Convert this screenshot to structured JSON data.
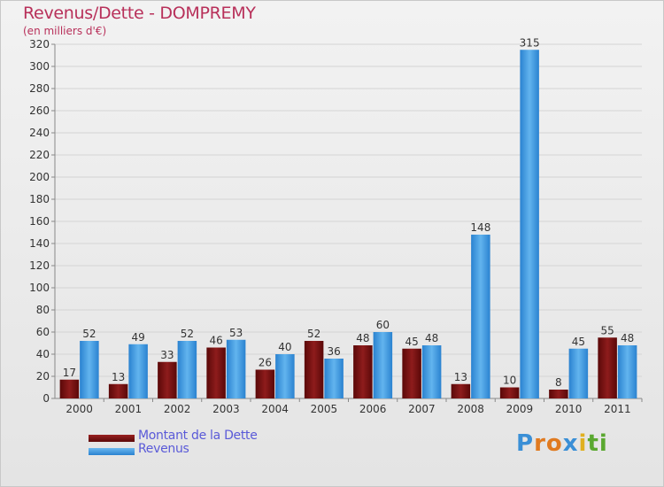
{
  "chart_data": {
    "type": "bar",
    "title": "Revenus/Dette - DOMPREMY",
    "subtitle": "(en milliers d'€)",
    "categories": [
      "2000",
      "2001",
      "2002",
      "2003",
      "2004",
      "2005",
      "2006",
      "2007",
      "2008",
      "2009",
      "2010",
      "2011"
    ],
    "series": [
      {
        "name": "Montant de la Dette",
        "color": "#7a1010",
        "values": [
          17,
          13,
          33,
          46,
          26,
          52,
          48,
          45,
          13,
          10,
          8,
          55
        ]
      },
      {
        "name": "Revenus",
        "color": "#3a9ae6",
        "values": [
          52,
          49,
          52,
          53,
          40,
          36,
          60,
          48,
          148,
          315,
          45,
          48
        ]
      }
    ],
    "ylim": [
      0,
      320
    ],
    "yticks": [
      0,
      20,
      40,
      60,
      80,
      100,
      120,
      140,
      160,
      180,
      200,
      220,
      240,
      260,
      280,
      300,
      320
    ],
    "grid": true,
    "legend": "bottom-left"
  },
  "brand": {
    "letters": [
      "P",
      "r",
      "o",
      "x",
      "i",
      "t",
      "i"
    ],
    "colors": [
      "#3a8fd6",
      "#e07a20",
      "#e07a20",
      "#3a8fd6",
      "#e0b020",
      "#5aa830",
      "#5aa830"
    ]
  }
}
